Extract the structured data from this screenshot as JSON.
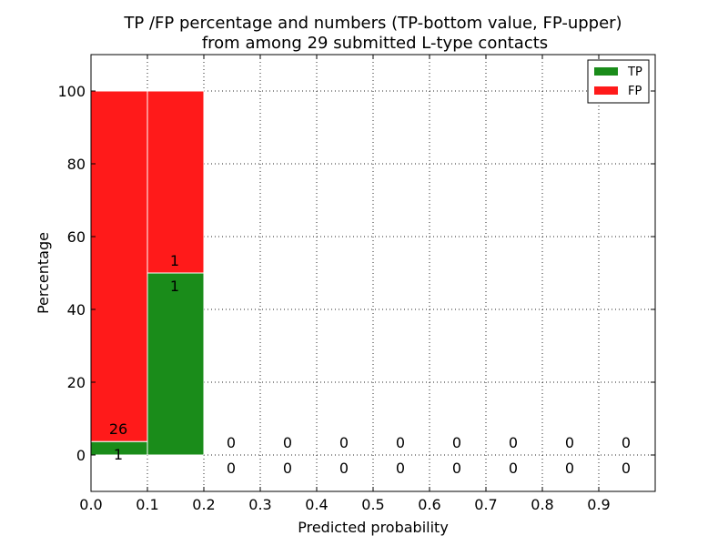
{
  "chart_data": {
    "type": "bar",
    "title_line1": "TP /FP percentage and numbers (TP-bottom value, FP-upper)",
    "title_line2": "from among 29 submitted L-type contacts",
    "xlabel": "Predicted probability",
    "ylabel": "Percentage",
    "xlim": [
      0.0,
      1.0
    ],
    "ylim": [
      -10,
      110
    ],
    "x_ticks": [
      0.0,
      0.1,
      0.2,
      0.3,
      0.4,
      0.5,
      0.6,
      0.7,
      0.8,
      0.9
    ],
    "x_tick_labels": [
      "0.0",
      "0.1",
      "0.2",
      "0.3",
      "0.4",
      "0.5",
      "0.6",
      "0.7",
      "0.8",
      "0.9"
    ],
    "y_ticks": [
      0,
      20,
      40,
      60,
      80,
      100
    ],
    "y_tick_labels": [
      "0",
      "20",
      "40",
      "60",
      "80",
      "100"
    ],
    "bin_width": 0.1,
    "bins": [
      0.0,
      0.1,
      0.2,
      0.3,
      0.4,
      0.5,
      0.6,
      0.7,
      0.8,
      0.9
    ],
    "series": [
      {
        "name": "TP",
        "color": "#1a8c1a",
        "values": [
          3.7,
          50,
          0,
          0,
          0,
          0,
          0,
          0,
          0,
          0
        ],
        "counts": [
          "1",
          "1",
          "0",
          "0",
          "0",
          "0",
          "0",
          "0",
          "0",
          "0"
        ]
      },
      {
        "name": "FP",
        "color": "#ff1a1a",
        "values": [
          96.3,
          50,
          0,
          0,
          0,
          0,
          0,
          0,
          0,
          0
        ],
        "counts": [
          "26",
          "1",
          "0",
          "0",
          "0",
          "0",
          "0",
          "0",
          "0",
          "0"
        ]
      }
    ],
    "grid": true,
    "legend_position": "top-right"
  }
}
